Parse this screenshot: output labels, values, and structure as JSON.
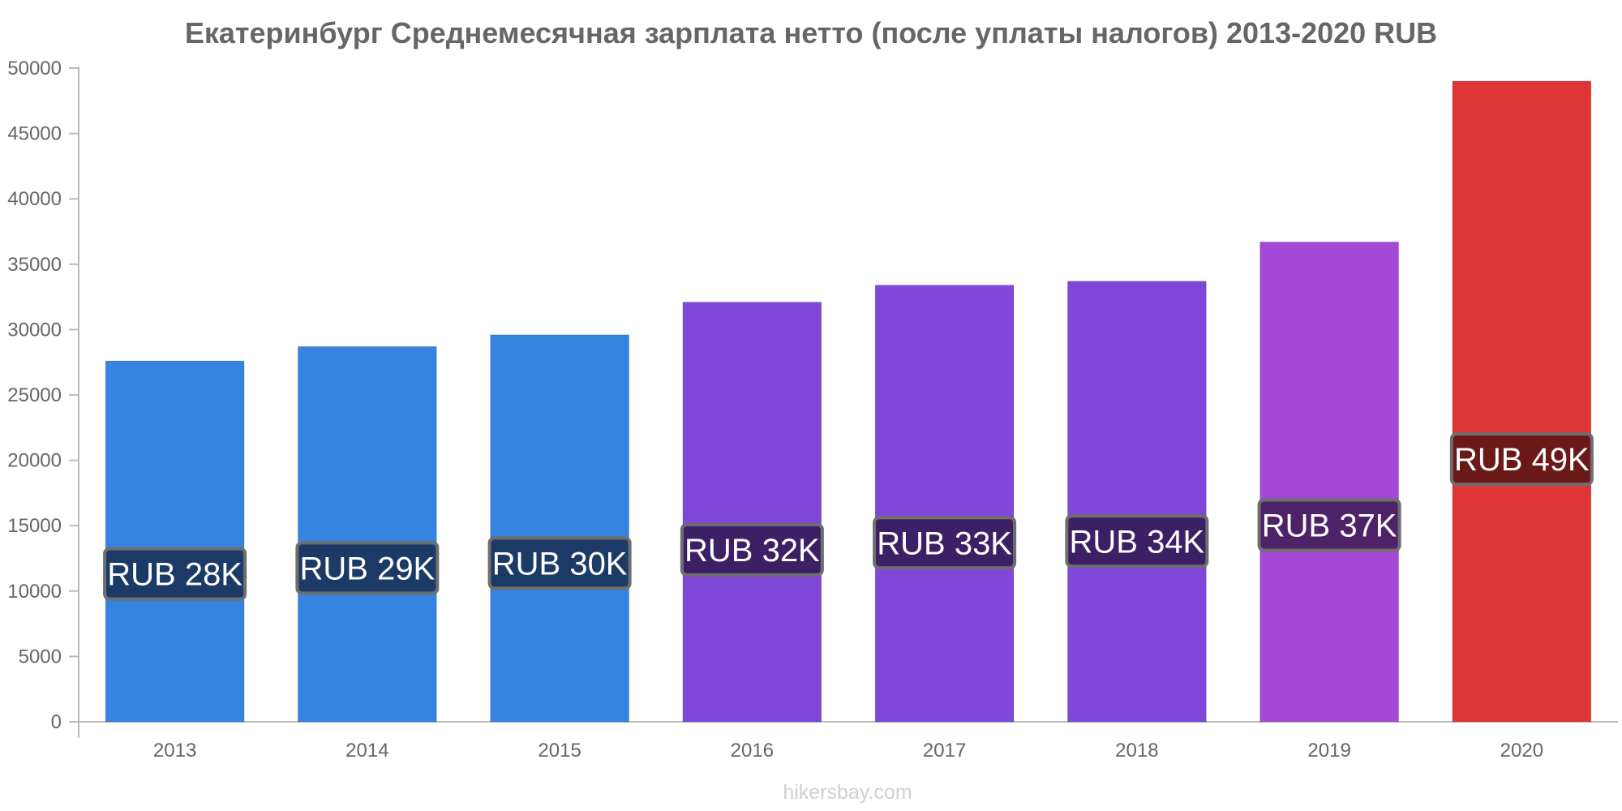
{
  "chart_data": {
    "type": "bar",
    "title": "Екатеринбург Среднемесячная зарплата нетто (после уплаты налогов) 2013-2020 RUB",
    "xlabel": "",
    "ylabel": "",
    "categories": [
      "2013",
      "2014",
      "2015",
      "2016",
      "2017",
      "2018",
      "2019",
      "2020"
    ],
    "values": [
      27600,
      28700,
      29600,
      32100,
      33400,
      33700,
      36700,
      49000
    ],
    "data_labels": [
      "RUB 28K",
      "RUB 29K",
      "RUB 30K",
      "RUB 32K",
      "RUB 33K",
      "RUB 34K",
      "RUB 37K",
      "RUB 49K"
    ],
    "ylim": [
      0,
      50000
    ],
    "yticks": [
      0,
      5000,
      10000,
      15000,
      20000,
      25000,
      30000,
      35000,
      40000,
      45000,
      50000
    ],
    "ytick_labels": [
      "0",
      "5000",
      "10000",
      "15000",
      "20000",
      "25000",
      "30000",
      "35000",
      "40000",
      "45000",
      "50000"
    ],
    "grid": false,
    "legend": "none",
    "bar_colors": [
      "#3584e0",
      "#3584e0",
      "#3584e0",
      "#8048d8",
      "#8048d8",
      "#8048d8",
      "#a548d8",
      "#e03535"
    ],
    "label_box_colors": [
      "#1c3a66",
      "#1c3a66",
      "#1c3a66",
      "#3c2066",
      "#3c2066",
      "#3c2066",
      "#4e2266",
      "#6b1818"
    ]
  },
  "footer": {
    "source": "hikersbay.com"
  }
}
